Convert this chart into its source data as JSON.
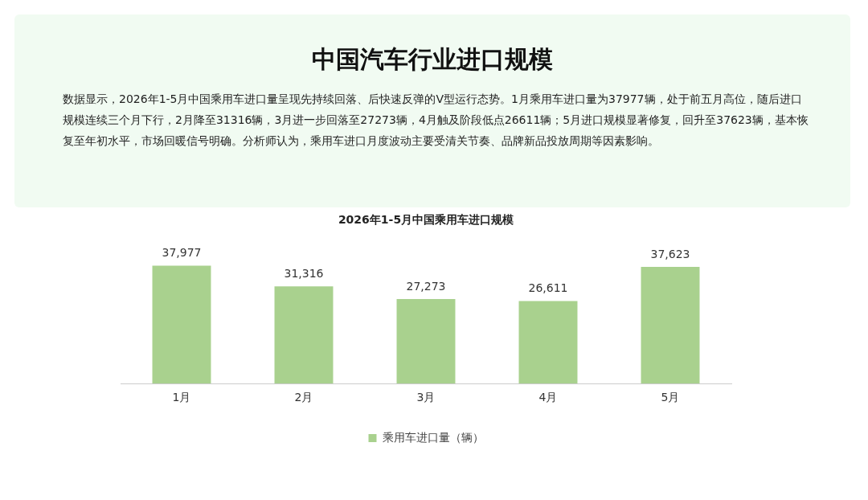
{
  "chart_data": {
    "type": "bar",
    "title": "2026年1-5月中国乘用车进口规模",
    "annotations": [
      "中国汽车行业进口规模",
      "数据显示，2026年1-5月中国乘用车进口量呈现先持续回落、后快速反弹的V型运行态势。1月乘用车进口量为37977辆，处于前五月高位，随后进口规模连续三个月下行，2月降至31316辆，3月进一步回落至27273辆，4月触及阶段低点26611辆；5月进口规模显著修复，回升至37623辆，基本恢复至年初水平，市场回暖信号明确。分析师认为，乘用车进口月度波动主要受清关节奏、品牌新品投放周期等因素影响。"
    ],
    "categories": [
      "1月",
      "2月",
      "3月",
      "4月",
      "5月"
    ],
    "series": [
      {
        "name": "乘用车进口量（辆）",
        "color": "#a9d18e",
        "values": [
          37977,
          31316,
          27273,
          26611,
          37623
        ],
        "value_labels": [
          "37,977",
          "31,316",
          "27,273",
          "26,611",
          "37,623"
        ]
      }
    ],
    "grid": false,
    "legend": "bottom",
    "tick_labels": "x"
  }
}
